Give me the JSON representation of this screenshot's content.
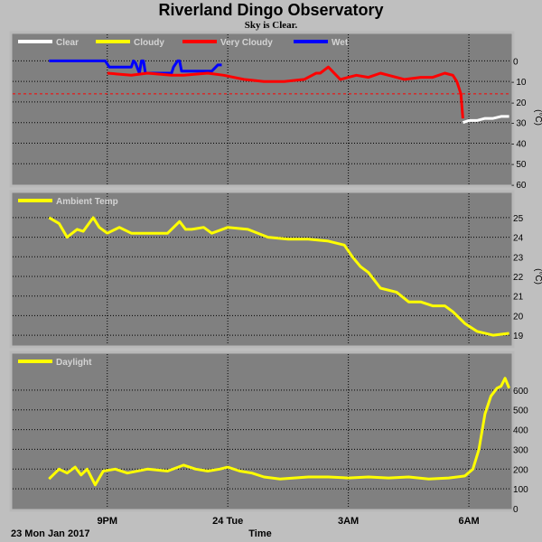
{
  "title": "Riverland Dingo Observatory",
  "subtitle": "Sky is Clear.",
  "x_axis": {
    "label": "Time",
    "start_date": "23 Mon Jan 2017",
    "ticks": [
      {
        "hour": 21,
        "label": "9PM"
      },
      {
        "hour": 24,
        "label": "24 Tue"
      },
      {
        "hour": 27,
        "label": "3AM"
      },
      {
        "hour": 30,
        "label": "6AM"
      }
    ],
    "range": [
      18.6,
      31.1
    ]
  },
  "colors": {
    "plot_bg": "#808080",
    "frame": "#b8b8b8",
    "grid": "#000000",
    "clear": "#ffffff",
    "cloudy": "#ffff00",
    "very_cloudy": "#ff0000",
    "wet": "#0000ff",
    "threshold": "#ff0000"
  },
  "chart_data": [
    {
      "type": "line",
      "panel": "sky",
      "ylabel": "(°C)",
      "ylim": [
        -60,
        5
      ],
      "yticks": [
        0,
        -10,
        -20,
        -30,
        -40,
        -50,
        -60
      ],
      "legend": [
        "Clear",
        "Cloudy",
        "Very Cloudy",
        "Wet"
      ],
      "threshold": -16,
      "series": [
        {
          "name": "Wet",
          "color_key": "wet",
          "x": [
            19.55,
            20.95,
            21.05,
            21.6,
            21.65,
            21.7,
            21.8,
            21.85,
            21.9,
            21.95,
            22.0,
            22.6,
            22.65,
            22.75,
            22.8,
            22.85,
            23.6,
            23.75,
            23.85
          ],
          "y": [
            0,
            0,
            -3,
            -3,
            0,
            -1,
            -6,
            0,
            0,
            -6,
            -6,
            -6,
            -3,
            0,
            0,
            -5,
            -5,
            -2,
            -2
          ]
        },
        {
          "name": "Very Cloudy",
          "color_key": "very_cloudy",
          "x": [
            21.0,
            21.6,
            22.0,
            22.6,
            22.9,
            23.5,
            23.9,
            24.4,
            24.9,
            25.4,
            25.9,
            26.1,
            26.2,
            26.3,
            26.5,
            26.8,
            27.0,
            27.2,
            27.5,
            27.8,
            28.0,
            28.4,
            28.8,
            29.1,
            29.4,
            29.6,
            29.7,
            29.8,
            29.85
          ],
          "y": [
            -6,
            -7,
            -6,
            -7,
            -7,
            -6,
            -7,
            -9,
            -10,
            -10,
            -9,
            -7,
            -6,
            -6,
            -3,
            -9,
            -8,
            -7,
            -8,
            -6,
            -7,
            -9,
            -8,
            -8,
            -6,
            -7,
            -10,
            -16,
            -28
          ]
        },
        {
          "name": "Clear",
          "color_key": "clear",
          "x": [
            29.85,
            30.0,
            30.2,
            30.4,
            30.6,
            30.8,
            31.0
          ],
          "y": [
            -30,
            -29,
            -29,
            -28,
            -28,
            -27,
            -27
          ]
        }
      ]
    },
    {
      "type": "line",
      "panel": "ambient",
      "ylabel": "(°C)",
      "ylim": [
        18.5,
        25.5
      ],
      "yticks": [
        25,
        24,
        23,
        22,
        21,
        20,
        19
      ],
      "legend": [
        "Ambient Temp"
      ],
      "series": [
        {
          "name": "Ambient Temp",
          "color_key": "cloudy",
          "x": [
            19.55,
            19.8,
            20.0,
            20.25,
            20.4,
            20.65,
            20.8,
            21.0,
            21.3,
            21.6,
            22.0,
            22.5,
            22.8,
            22.95,
            23.1,
            23.4,
            23.6,
            24.0,
            24.5,
            25.0,
            25.5,
            26.0,
            26.5,
            26.9,
            27.1,
            27.3,
            27.5,
            27.8,
            28.2,
            28.5,
            28.8,
            29.1,
            29.4,
            29.6,
            29.9,
            30.2,
            30.6,
            31.0
          ],
          "y": [
            25.0,
            24.7,
            24.0,
            24.4,
            24.3,
            25.0,
            24.5,
            24.2,
            24.5,
            24.2,
            24.2,
            24.2,
            24.8,
            24.4,
            24.4,
            24.5,
            24.2,
            24.5,
            24.4,
            24.0,
            23.9,
            23.9,
            23.8,
            23.6,
            23.0,
            22.5,
            22.2,
            21.4,
            21.2,
            20.7,
            20.7,
            20.5,
            20.5,
            20.2,
            19.6,
            19.2,
            19.0,
            19.1
          ]
        }
      ]
    },
    {
      "type": "line",
      "panel": "daylight",
      "ylim": [
        0,
        700
      ],
      "yticks": [
        600,
        500,
        400,
        300,
        200,
        100,
        0
      ],
      "legend": [
        "Daylight"
      ],
      "series": [
        {
          "name": "Daylight",
          "color_key": "cloudy",
          "x": [
            19.55,
            19.8,
            20.0,
            20.2,
            20.35,
            20.5,
            20.7,
            20.9,
            21.2,
            21.5,
            22.0,
            22.5,
            22.9,
            23.2,
            23.5,
            23.8,
            24.0,
            24.3,
            24.6,
            24.9,
            25.3,
            26.0,
            26.5,
            27.0,
            27.5,
            28.0,
            28.5,
            29.0,
            29.5,
            29.9,
            30.1,
            30.25,
            30.4,
            30.55,
            30.7,
            30.8,
            30.9,
            31.0
          ],
          "y": [
            150,
            200,
            180,
            210,
            170,
            200,
            120,
            190,
            200,
            180,
            200,
            190,
            220,
            200,
            190,
            200,
            210,
            190,
            180,
            160,
            150,
            160,
            160,
            155,
            160,
            155,
            160,
            150,
            155,
            165,
            200,
            300,
            480,
            570,
            610,
            620,
            660,
            610
          ]
        }
      ]
    }
  ]
}
